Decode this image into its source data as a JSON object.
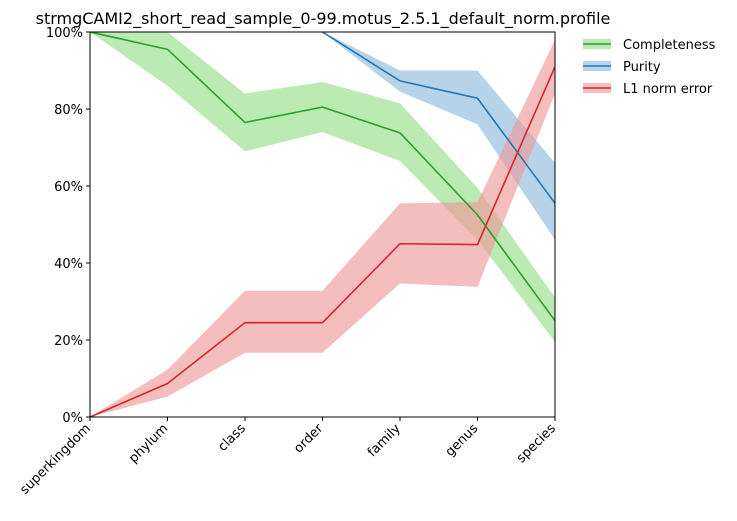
{
  "chart_data": {
    "type": "line",
    "title": "strmgCAMI2_short_read_sample_0-99.motus_2.5.1_default_norm.profile",
    "xlabel": "",
    "ylabel": "",
    "categories": [
      "superkingdom",
      "phylum",
      "class",
      "order",
      "family",
      "genus",
      "species"
    ],
    "ylim": [
      0,
      100
    ],
    "yticks": [
      "0%",
      "20%",
      "40%",
      "60%",
      "80%",
      "100%"
    ],
    "ytick_values": [
      0,
      20,
      40,
      60,
      80,
      100
    ],
    "grid": false,
    "legend_position": "outside-top-right",
    "series": [
      {
        "name": "Completeness",
        "color": "#2ca02c",
        "band_color": "#98df8a",
        "values": [
          100,
          95.5,
          76.5,
          80.5,
          73.8,
          52.5,
          25
        ],
        "lower": [
          100,
          86,
          69,
          74,
          66.5,
          46,
          19.5
        ],
        "upper": [
          100,
          100,
          84,
          87,
          81.5,
          59.5,
          31
        ]
      },
      {
        "name": "Purity",
        "color": "#1f77b4",
        "band_color": "#8fbbde",
        "values": [
          null,
          null,
          null,
          100,
          87.3,
          82.8,
          55.5
        ],
        "lower": [
          null,
          null,
          null,
          100,
          84.5,
          76,
          46
        ],
        "upper": [
          null,
          null,
          null,
          100,
          90,
          90,
          66
        ]
      },
      {
        "name": "L1 norm error",
        "color": "#d62728",
        "band_color": "#ee9a9b",
        "values": [
          0,
          8.7,
          24.5,
          24.5,
          45,
          44.8,
          91
        ],
        "lower": [
          0,
          5.3,
          16.7,
          16.7,
          34.7,
          33.8,
          84
        ],
        "upper": [
          0,
          12.3,
          32.8,
          32.8,
          55.5,
          55.8,
          98
        ]
      }
    ]
  }
}
